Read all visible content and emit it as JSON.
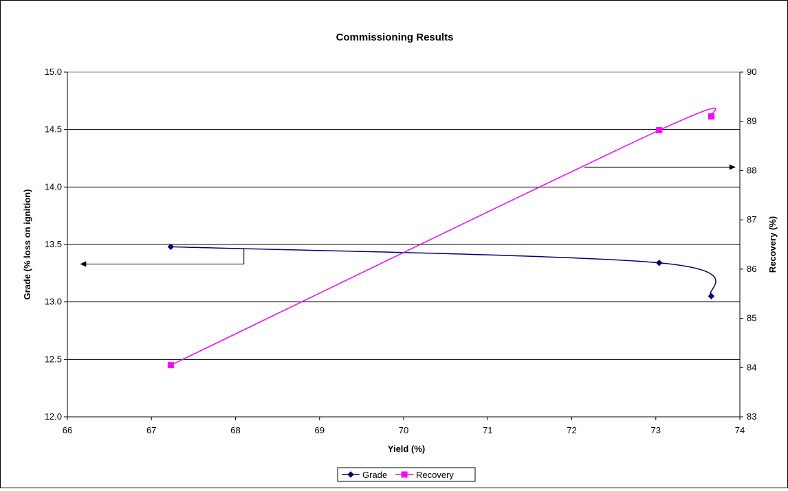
{
  "chart_data": {
    "type": "line",
    "title": "Commissioning Results",
    "xlabel": "Yield (%)",
    "ylabel": "Grade (% loss on ignition)",
    "y2label": "Recovery (%)",
    "xlim": [
      66,
      74
    ],
    "ylim": [
      12.0,
      15.0
    ],
    "y2lim": [
      83,
      90
    ],
    "x_ticks": [
      "66",
      "67",
      "68",
      "69",
      "70",
      "71",
      "72",
      "73",
      "74"
    ],
    "y_ticks": [
      "12.0",
      "12.5",
      "13.0",
      "13.5",
      "14.0",
      "14.5",
      "15.0"
    ],
    "y2_ticks": [
      "83",
      "84",
      "85",
      "86",
      "87",
      "88",
      "89",
      "90"
    ],
    "grid": "horizontal",
    "legend_position": "bottom",
    "series": [
      {
        "name": "Grade",
        "axis": "left",
        "color": "#000080",
        "marker": "diamond",
        "smooth": true,
        "x": [
          67.23,
          73.04,
          73.66
        ],
        "y": [
          13.48,
          13.34,
          13.05
        ]
      },
      {
        "name": "Recovery",
        "axis": "right",
        "color": "#FF00FF",
        "marker": "square",
        "smooth": true,
        "x": [
          67.23,
          73.04,
          73.66
        ],
        "y": [
          84.05,
          88.82,
          89.1
        ]
      }
    ],
    "annotations": [
      {
        "type": "arrow",
        "direction": "left",
        "target_axis": "Grade"
      },
      {
        "type": "arrow",
        "direction": "right",
        "target_axis": "Recovery"
      }
    ]
  }
}
